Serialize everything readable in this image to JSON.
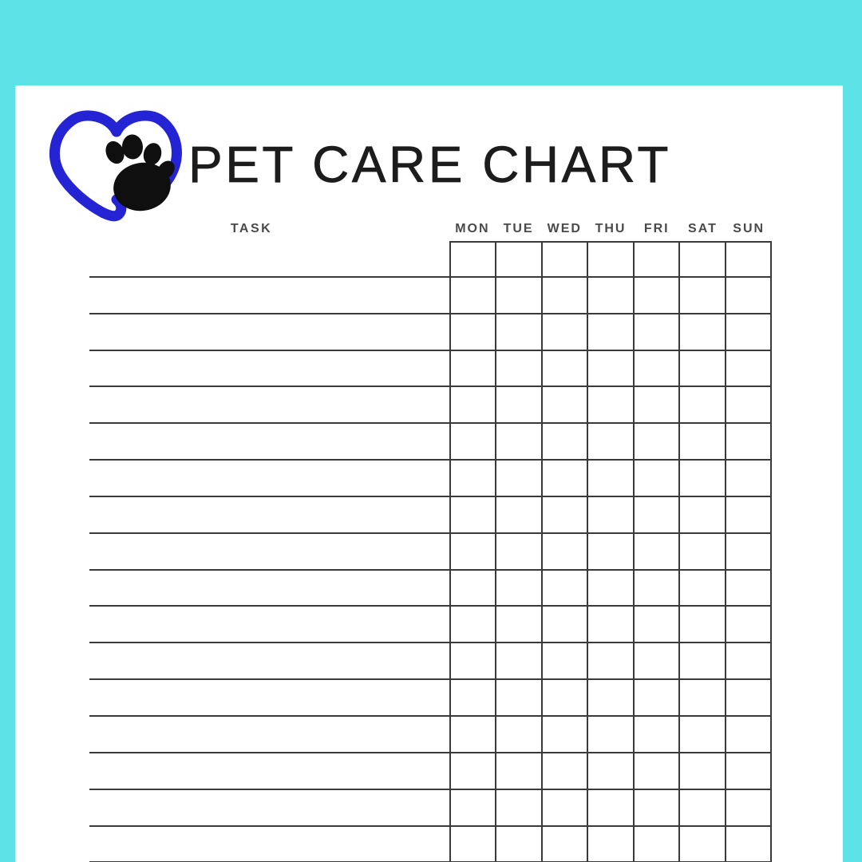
{
  "title": "PET CARE CHART",
  "logo": {
    "icon": "heart-with-paw",
    "heart_color": "#2424d4",
    "paw_color": "#0f0f0f"
  },
  "table": {
    "task_header": "TASK",
    "days": [
      "MON",
      "TUE",
      "WED",
      "THU",
      "FRI",
      "SAT",
      "SUN"
    ],
    "visible_task_rows": 17
  },
  "colors": {
    "background": "#5ce1e6",
    "paper": "#ffffff",
    "grid_line": "#3a3a3a",
    "header_text": "#4a4a4a",
    "title_text": "#1c1c1c"
  }
}
